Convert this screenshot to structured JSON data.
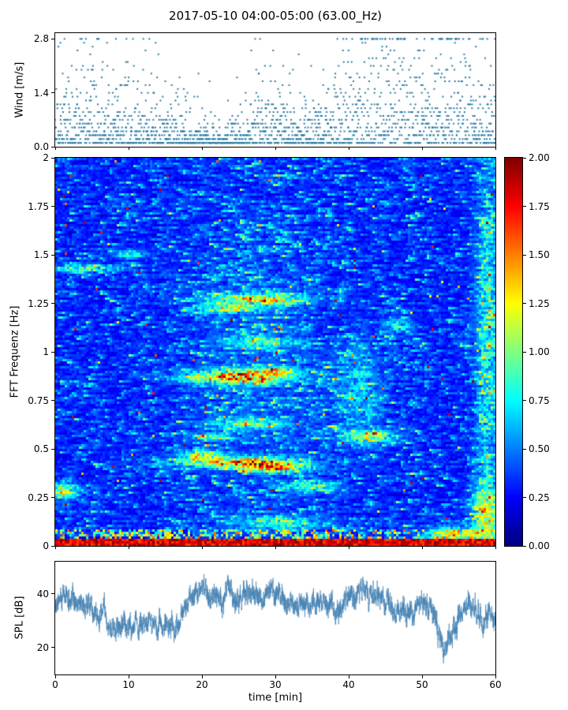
{
  "title": "2017-05-10 04:00-05:00 (63.00_Hz)",
  "xlabel": "time [min]",
  "x_ticks": [
    "0",
    "10",
    "20",
    "30",
    "40",
    "50",
    "60"
  ],
  "x_tick_values": [
    0,
    10,
    20,
    30,
    40,
    50,
    60
  ],
  "xlim": [
    0,
    60
  ],
  "chart_data": [
    {
      "type": "scatter",
      "name": "wind-speed",
      "ylabel": "Wind [m/s]",
      "ylim": [
        0,
        2.95
      ],
      "ytick_labels": [
        "0.0",
        "1.4",
        "2.8"
      ],
      "ytick_values": [
        0.0,
        1.4,
        2.8
      ],
      "marker_color": "#2878a0",
      "n_samples": 2000,
      "quantize_step_mps": 0.1,
      "max_observed_mps": 2.8,
      "trend_minutes": [
        0,
        2.5,
        5,
        7.5,
        10,
        12.5,
        15,
        17.5,
        20,
        22.5,
        25,
        27.5,
        30,
        32.5,
        35,
        37.5,
        40,
        42.5,
        45,
        47.5,
        50,
        52.5,
        55,
        57.5,
        60
      ],
      "trend_mean_mps": [
        0.6,
        0.7,
        0.8,
        0.7,
        0.55,
        0.5,
        0.5,
        0.35,
        0.25,
        0.2,
        0.25,
        0.55,
        0.65,
        0.45,
        0.4,
        0.6,
        1.0,
        1.2,
        1.15,
        1.25,
        0.85,
        0.9,
        1.0,
        0.7,
        0.55
      ]
    },
    {
      "type": "heatmap",
      "name": "fft-spectrogram",
      "ylabel": "FFT Frequenz [Hz]",
      "xlim": [
        0,
        60
      ],
      "ylim": [
        0,
        2
      ],
      "ytick_labels": [
        "0",
        "0.25",
        "0.5",
        "0.75",
        "1",
        "1.25",
        "1.5",
        "1.75",
        "2"
      ],
      "ytick_values": [
        0,
        0.25,
        0.5,
        0.75,
        1,
        1.25,
        1.5,
        1.75,
        2
      ],
      "colormap": "jet",
      "vmin": 0,
      "vmax": 2,
      "background_level_range": [
        0.12,
        0.5
      ],
      "bottom_band_hz": 0.035,
      "bottom_band_level": [
        1.6,
        2.0
      ],
      "colorbar": {
        "tick_labels": [
          "0.00",
          "0.25",
          "0.50",
          "0.75",
          "1.00",
          "1.25",
          "1.50",
          "1.75",
          "2.00"
        ],
        "tick_values": [
          0,
          0.25,
          0.5,
          0.75,
          1,
          1.25,
          1.5,
          1.75,
          2
        ]
      },
      "features": [
        {
          "t": 25.5,
          "f": 0.43,
          "dt": 8,
          "df": 0.025,
          "amp": 1.5
        },
        {
          "t": 30,
          "f": 0.4,
          "dt": 4,
          "df": 0.02,
          "amp": 1.2
        },
        {
          "t": 20,
          "f": 0.47,
          "dt": 3,
          "df": 0.02,
          "amp": 0.8
        },
        {
          "t": 25,
          "f": 0.87,
          "dt": 7,
          "df": 0.035,
          "amp": 1.3
        },
        {
          "t": 30,
          "f": 0.9,
          "dt": 3,
          "df": 0.02,
          "amp": 0.9
        },
        {
          "t": 28,
          "f": 1.27,
          "dt": 6,
          "df": 0.03,
          "amp": 1.1
        },
        {
          "t": 23,
          "f": 1.22,
          "dt": 4,
          "df": 0.02,
          "amp": 0.9
        },
        {
          "t": 3.5,
          "f": 1.43,
          "dt": 4,
          "df": 0.02,
          "amp": 0.85
        },
        {
          "t": 1,
          "f": 0.28,
          "dt": 2,
          "df": 0.04,
          "amp": 1.1
        },
        {
          "t": 59,
          "f": 1.0,
          "dt": 1.5,
          "df": 1.0,
          "amp": 0.55
        },
        {
          "t": 59,
          "f": 0.18,
          "dt": 2,
          "df": 0.12,
          "amp": 0.8
        },
        {
          "t": 55,
          "f": 0.06,
          "dt": 4,
          "df": 0.04,
          "amp": 1.0
        },
        {
          "t": 43,
          "f": 0.56,
          "dt": 4,
          "df": 0.03,
          "amp": 0.8
        },
        {
          "t": 21,
          "f": 0.56,
          "dt": 2.5,
          "df": 0.02,
          "amp": 0.7
        },
        {
          "t": 41.5,
          "f": 0.8,
          "dt": 3,
          "df": 0.25,
          "amp": 0.4
        },
        {
          "t": 31,
          "f": 0.12,
          "dt": 6,
          "df": 0.03,
          "amp": 0.7
        },
        {
          "t": 47,
          "f": 1.13,
          "dt": 2,
          "df": 0.04,
          "amp": 0.55
        },
        {
          "t": 10,
          "f": 1.5,
          "dt": 2.5,
          "df": 0.02,
          "amp": 0.5
        },
        {
          "t": 28,
          "f": 1.05,
          "dt": 5,
          "df": 0.03,
          "amp": 0.6
        },
        {
          "t": 26,
          "f": 0.63,
          "dt": 5,
          "df": 0.03,
          "amp": 0.6
        },
        {
          "t": 35,
          "f": 0.3,
          "dt": 4,
          "df": 0.03,
          "amp": 0.6
        },
        {
          "t": 27,
          "f": 0.9,
          "dt": 10,
          "df": 0.8,
          "amp": 0.15
        }
      ]
    },
    {
      "type": "line",
      "name": "spl",
      "ylabel": "SPL [dB]",
      "ylim": [
        10,
        52
      ],
      "ytick_labels": [
        "20",
        "40"
      ],
      "ytick_values": [
        20,
        40
      ],
      "line_color": "#4682b4",
      "n_samples": 3600,
      "trend_minutes": [
        0,
        2,
        4,
        6,
        8,
        10,
        12,
        14,
        16,
        17,
        18,
        20,
        22,
        24,
        26,
        28,
        30,
        32,
        34,
        36,
        38,
        40,
        42,
        44,
        46,
        48,
        50,
        51,
        52,
        53,
        54,
        55,
        56,
        58,
        60
      ],
      "trend_db": [
        37,
        38,
        36,
        34,
        29,
        28,
        29,
        28,
        29,
        30,
        38,
        40,
        39,
        40,
        39,
        40,
        39,
        36,
        35,
        36,
        35,
        38,
        40,
        38,
        36,
        34,
        38,
        37,
        28,
        20,
        24,
        33,
        36,
        31,
        30
      ]
    }
  ]
}
